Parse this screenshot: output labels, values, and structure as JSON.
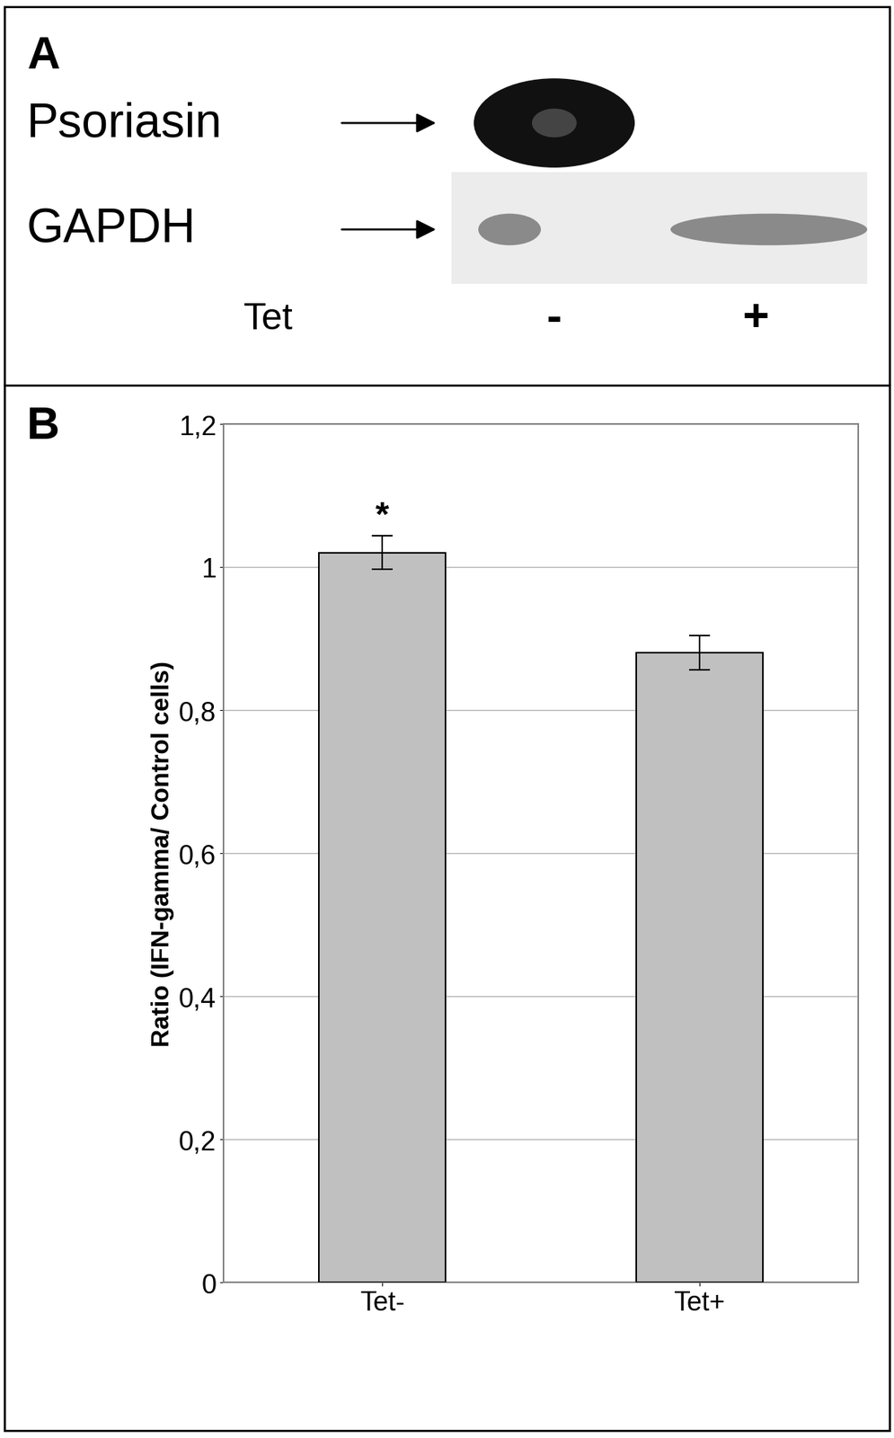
{
  "panel_labels": [
    "A",
    "B"
  ],
  "blot": {
    "rows": [
      "Psoriasin",
      "GAPDH"
    ],
    "lanes_label": "Tet",
    "lanes": [
      "-",
      "+"
    ],
    "bands": {
      "Psoriasin": [
        true,
        false
      ],
      "GAPDH": [
        true,
        true
      ]
    }
  },
  "chart_data": {
    "type": "bar",
    "categories": [
      "Tet-",
      "Tet+"
    ],
    "values": [
      1.02,
      0.88
    ],
    "errors": [
      0.023,
      0.024
    ],
    "color": "#c0c0c0",
    "ylabel": "Ratio (IFN-gamma/ Control cells)",
    "ylim": [
      0,
      1.2
    ],
    "yticks": [
      0,
      {
        "value": 0.2,
        "label": "0,2"
      },
      {
        "value": 0.4,
        "label": "0,4"
      },
      {
        "value": 0.6,
        "label": "0,6"
      },
      {
        "value": 0.8,
        "label": "0,8"
      },
      1,
      {
        "value": 1.2,
        "label": "1,2"
      }
    ],
    "grid": true,
    "annotations": [
      {
        "text": "*",
        "category": "Tet-"
      }
    ]
  }
}
